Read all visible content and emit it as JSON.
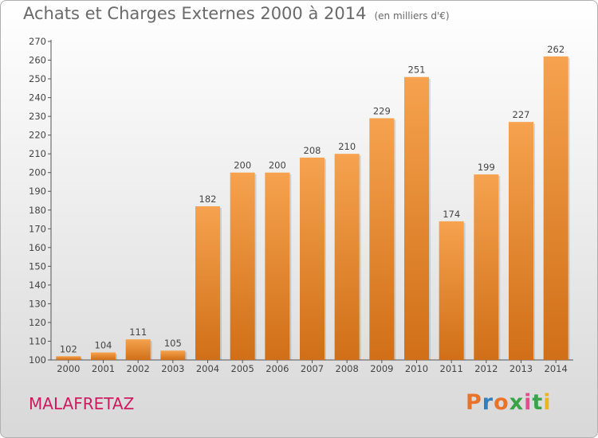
{
  "header": {
    "title": "Achats et Charges Externes 2000 à 2014",
    "unit": "(en milliers d'€)"
  },
  "footer": {
    "commune": "MALAFRETAZ",
    "logo_text": "Proxiti"
  },
  "colors": {
    "bar_top": "#f6a24e",
    "bar_bottom": "#d06f17",
    "commune_text": "#cc1b5e",
    "logo_letters": [
      "#e8732a",
      "#2f7fc1",
      "#e8732a",
      "#3aa34a",
      "#e24d8b",
      "#3aa34a",
      "#e8b51c"
    ]
  },
  "chart_data": {
    "type": "bar",
    "title": "Achats et Charges Externes 2000 à 2014",
    "xlabel": "",
    "ylabel": "",
    "categories": [
      "2000",
      "2001",
      "2002",
      "2003",
      "2004",
      "2005",
      "2006",
      "2007",
      "2008",
      "2009",
      "2010",
      "2011",
      "2012",
      "2013",
      "2014"
    ],
    "values": [
      102,
      104,
      111,
      105,
      182,
      200,
      200,
      208,
      210,
      229,
      251,
      174,
      199,
      227,
      262
    ],
    "ylim": [
      100,
      270
    ],
    "yticks": [
      100,
      110,
      120,
      130,
      140,
      150,
      160,
      170,
      180,
      190,
      200,
      210,
      220,
      230,
      240,
      250,
      260,
      270
    ],
    "grid": false,
    "legend": "none"
  }
}
